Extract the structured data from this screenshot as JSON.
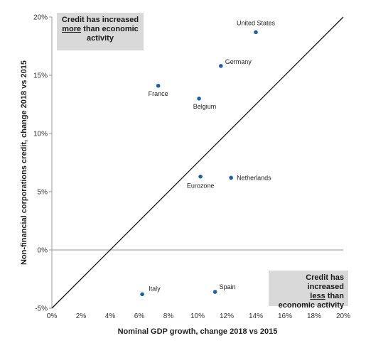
{
  "chart_data": {
    "type": "scatter",
    "xlabel": "Nominal GDP growth, change 2018 vs 2015",
    "ylabel": "Non-financial corporations credit, change 2018 vs 2015",
    "xlim": [
      0,
      20
    ],
    "ylim": [
      -5,
      20
    ],
    "x_ticks": [
      "0%",
      "2%",
      "4%",
      "6%",
      "8%",
      "10%",
      "12%",
      "14%",
      "16%",
      "18%",
      "20%"
    ],
    "y_ticks": [
      "-5%",
      "0%",
      "5%",
      "10%",
      "15%",
      "20%"
    ],
    "x_tick_values": [
      0,
      2,
      4,
      6,
      8,
      10,
      12,
      14,
      16,
      18,
      20
    ],
    "y_tick_values": [
      -5,
      0,
      5,
      10,
      15,
      20
    ],
    "points": [
      {
        "label": "United States",
        "x": 14.0,
        "y": 18.7
      },
      {
        "label": "Germany",
        "x": 11.6,
        "y": 15.8
      },
      {
        "label": "France",
        "x": 7.3,
        "y": 14.1
      },
      {
        "label": "Belgium",
        "x": 10.1,
        "y": 13.0
      },
      {
        "label": "Eurozone",
        "x": 10.2,
        "y": 6.3
      },
      {
        "label": "Netherlands",
        "x": 12.3,
        "y": 6.2
      },
      {
        "label": "Spain",
        "x": 11.2,
        "y": -3.6
      },
      {
        "label": "Italy",
        "x": 6.2,
        "y": -3.8
      }
    ],
    "reference_line": {
      "x": [
        0,
        20
      ],
      "y": [
        -5,
        20
      ]
    },
    "point_color": "#1f5f9e",
    "grid": false
  },
  "annotations": {
    "top_line1": "Credit has increased",
    "top_underlined": "more",
    "top_rest": " than economic activity",
    "bottom_line1": "Credit has increased",
    "bottom_underlined": "less",
    "bottom_rest": " than economic activity"
  }
}
